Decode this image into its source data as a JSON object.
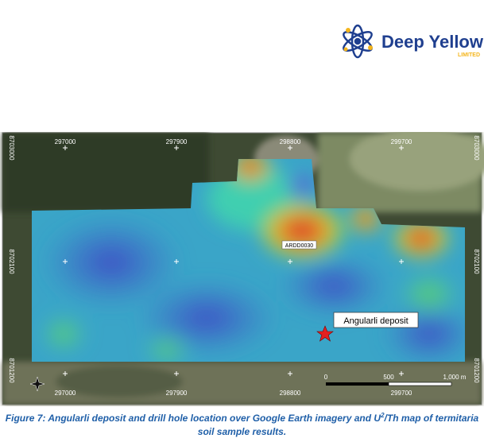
{
  "logo": {
    "name": "Deep Yellow",
    "suffix": "LIMITED"
  },
  "map": {
    "top_labels": [
      "297000",
      "297900",
      "298800",
      "299700"
    ],
    "bottom_labels": [
      "297000",
      "297900",
      "298800",
      "299700"
    ],
    "left_labels": [
      "8703000",
      "8702100",
      "8701200"
    ],
    "right_labels": [
      "8703000",
      "8702100",
      "8701200"
    ],
    "drill_hole": "ARDD0030",
    "deposit": "Angularli deposit",
    "scale": [
      "0",
      "500",
      "1,000 m"
    ]
  },
  "caption": {
    "before": "Figure 7: Angularli deposit and drill hole location over Google Earth imagery and U",
    "superscript": "2",
    "after": "/Th map of termitaria soil sample results."
  }
}
